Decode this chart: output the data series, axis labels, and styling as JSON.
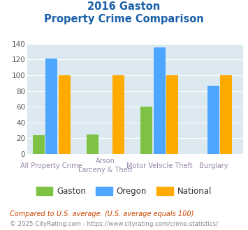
{
  "title_line1": "2016 Gaston",
  "title_line2": "Property Crime Comparison",
  "gaston": [
    24,
    25,
    60,
    0
  ],
  "oregon": [
    121,
    0,
    135,
    87
  ],
  "national": [
    100,
    100,
    100,
    100
  ],
  "gaston_color": "#7dc242",
  "oregon_color": "#4da6ff",
  "national_color": "#ffaa00",
  "bg_color": "#dce9f0",
  "title_color": "#1a5fa8",
  "ylim": [
    0,
    140
  ],
  "yticks": [
    0,
    20,
    40,
    60,
    80,
    100,
    120,
    140
  ],
  "group_positions": [
    0.4,
    1.4,
    2.4,
    3.4
  ],
  "bar_width": 0.22,
  "bar_gap": 0.02,
  "xlim": [
    -0.05,
    3.95
  ],
  "cat_label1": [
    "All Property Crime",
    "Arson",
    "Motor Vehicle Theft",
    "Burglary"
  ],
  "cat_label2": [
    "",
    "Larceny & Theft",
    "",
    ""
  ],
  "footnote1": "Compared to U.S. average. (U.S. average equals 100)",
  "footnote2": "© 2025 CityRating.com - https://www.cityrating.com/crime-statistics/",
  "footnote1_color": "#cc4400",
  "footnote2_color": "#888888",
  "legend_labels": [
    "Gaston",
    "Oregon",
    "National"
  ]
}
